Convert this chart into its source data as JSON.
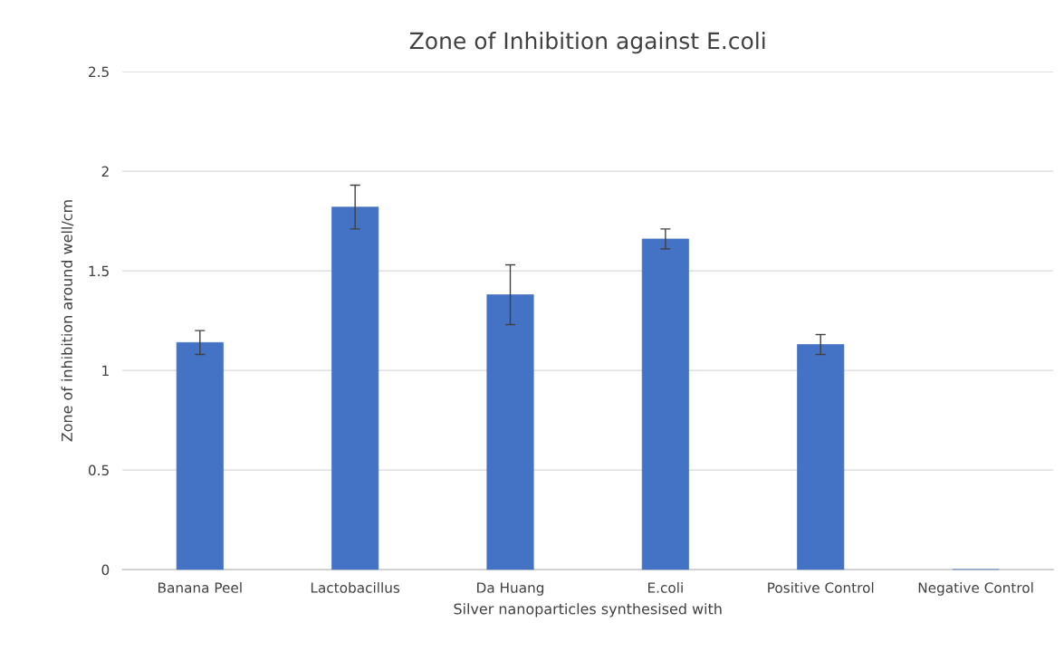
{
  "chart_data": {
    "type": "bar",
    "title": "Zone of Inhibition against E.coli",
    "xlabel": "Silver nanoparticles synthesised with",
    "ylabel": "Zone of inhibition around well/cm",
    "categories": [
      "Banana Peel",
      "Lactobacillus",
      "Da Huang",
      "E.coli",
      "Positive Control",
      "Negative Control"
    ],
    "values": [
      1.14,
      1.82,
      1.38,
      1.66,
      1.13,
      0
    ],
    "errors": [
      0.06,
      0.11,
      0.15,
      0.05,
      0.05,
      null
    ],
    "color": "#4472c4",
    "ylim": [
      0,
      2.5
    ],
    "yticks": [
      0,
      0.5,
      1,
      1.5,
      2,
      2.5
    ],
    "grid": "y"
  }
}
